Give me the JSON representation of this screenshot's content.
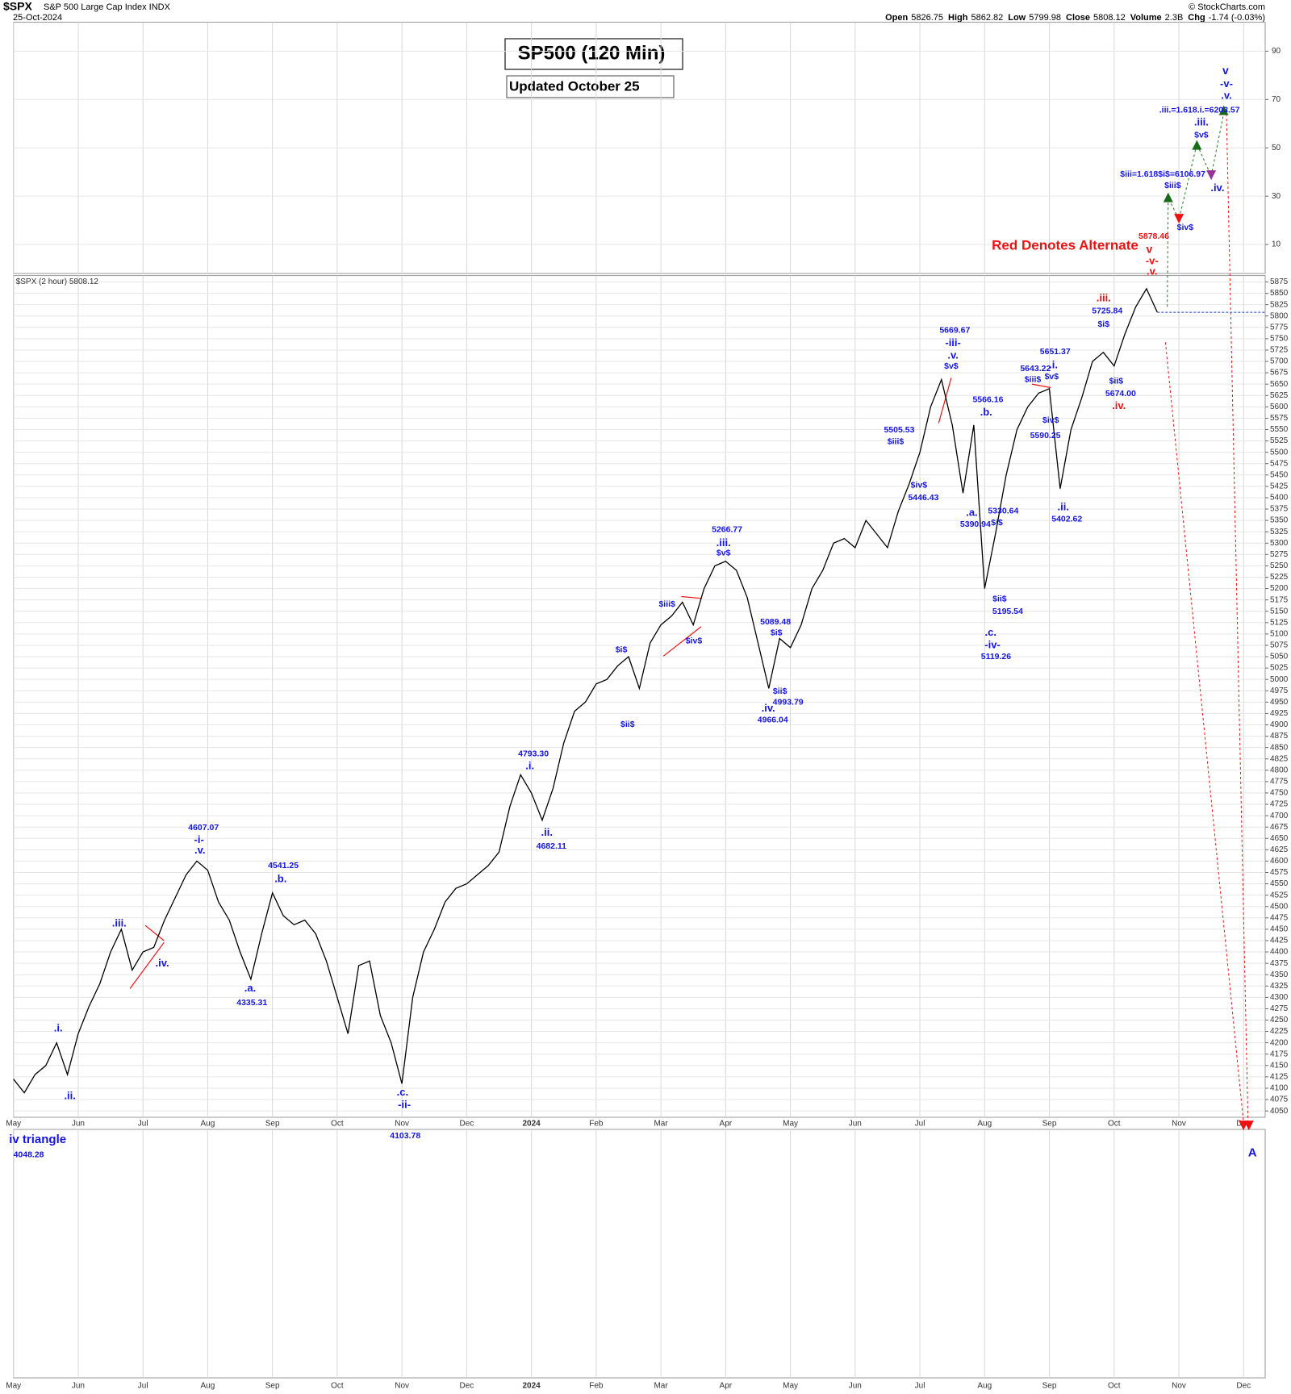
{
  "header": {
    "symbol": "$SPX",
    "name": "S&P 500 Large Cap Index INDX",
    "date": "25-Oct-2024",
    "quote": [
      {
        "label": "Open",
        "value": "5826.75"
      },
      {
        "label": "High",
        "value": "5862.82"
      },
      {
        "label": "Low",
        "value": "5799.98"
      },
      {
        "label": "Close",
        "value": "5808.12"
      },
      {
        "label": "Volume",
        "value": "2.3B"
      },
      {
        "label": "Chg",
        "value": "-1.74 (-0.03%)"
      }
    ],
    "source": "© StockCharts.com"
  },
  "chart_data": {
    "type": "line",
    "title": "SP500 (120 Min)",
    "subtitle": "Updated October 25",
    "series_label": "$SPX (2 hour) 5808.12",
    "last": 5808.12,
    "color": "#000000",
    "last_color": "#1f3fbf",
    "categories": [
      "May",
      null,
      null,
      null,
      null,
      null,
      "Jun",
      null,
      null,
      null,
      null,
      null,
      "Jul",
      null,
      null,
      null,
      null,
      null,
      "Aug",
      null,
      null,
      null,
      null,
      null,
      "Sep",
      null,
      null,
      null,
      null,
      null,
      "Oct",
      null,
      null,
      null,
      null,
      null,
      "Nov",
      null,
      null,
      null,
      null,
      null,
      "Dec",
      null,
      null,
      null,
      null,
      null,
      "2024",
      null,
      null,
      null,
      null,
      null,
      "Feb",
      null,
      null,
      null,
      null,
      null,
      "Mar",
      null,
      null,
      null,
      null,
      null,
      "Apr",
      null,
      null,
      null,
      null,
      null,
      "May",
      null,
      null,
      null,
      null,
      null,
      "Jun",
      null,
      null,
      null,
      null,
      null,
      "Jul",
      null,
      null,
      null,
      null,
      null,
      "Aug",
      null,
      null,
      null,
      null,
      null,
      "Sep",
      null,
      null,
      null,
      null,
      null,
      "Oct",
      null,
      null,
      null,
      null,
      null,
      "Nov",
      null,
      null,
      null,
      null,
      null,
      "Dec",
      null,
      null
    ],
    "values": [
      4120,
      4090,
      4130,
      4150,
      4200,
      4130,
      4220,
      4280,
      4330,
      4400,
      4450,
      4360,
      4400,
      4410,
      4470,
      4520,
      4570,
      4600,
      4580,
      4510,
      4470,
      4400,
      4340,
      4440,
      4530,
      4480,
      4460,
      4470,
      4440,
      4380,
      4300,
      4220,
      4370,
      4380,
      4260,
      4200,
      4110,
      4300,
      4400,
      4450,
      4510,
      4540,
      4550,
      4570,
      4590,
      4620,
      4720,
      4790,
      4750,
      4690,
      4760,
      4860,
      4930,
      4950,
      4990,
      5000,
      5030,
      5050,
      4980,
      5080,
      5120,
      5140,
      5170,
      5120,
      5200,
      5250,
      5260,
      5240,
      5180,
      5080,
      4980,
      5090,
      5070,
      5120,
      5200,
      5240,
      5300,
      5310,
      5290,
      5350,
      5320,
      5290,
      5370,
      5430,
      5500,
      5600,
      5660,
      5560,
      5410,
      5560,
      5200,
      5320,
      5450,
      5550,
      5600,
      5630,
      5640,
      5420,
      5550,
      5620,
      5700,
      5720,
      5690,
      5760,
      5820,
      5860,
      5808.12,
      null,
      null,
      null,
      null,
      null,
      null,
      null,
      null,
      null,
      null
    ],
    "ylim": [
      4036,
      5889
    ],
    "yticks": [
      4050,
      4075,
      4100,
      4125,
      4150,
      4175,
      4200,
      4225,
      4250,
      4275,
      4300,
      4325,
      4350,
      4375,
      4400,
      4425,
      4450,
      4475,
      4500,
      4525,
      4550,
      4575,
      4600,
      4625,
      4650,
      4675,
      4700,
      4725,
      4750,
      4775,
      4800,
      4825,
      4850,
      4875,
      4900,
      4925,
      4950,
      4975,
      5000,
      5025,
      5050,
      5075,
      5100,
      5125,
      5150,
      5175,
      5200,
      5225,
      5250,
      5275,
      5300,
      5325,
      5350,
      5375,
      5400,
      5425,
      5450,
      5475,
      5500,
      5525,
      5550,
      5575,
      5600,
      5625,
      5650,
      5675,
      5700,
      5725,
      5750,
      5775,
      5800,
      5825,
      5850,
      5875
    ],
    "grid": true,
    "upper_panel": {
      "ylim": [
        -2,
        102
      ],
      "yticks": [
        10,
        30,
        50,
        70,
        90
      ]
    },
    "annotations": [
      {
        "text": "Red Denotes Alternate",
        "color": "#ee1111"
      },
      {
        "text": ".i.",
        "color": "#1414e6"
      },
      {
        "text": ".ii.",
        "color": "#1414e6"
      },
      {
        "text": ".iii.",
        "color": "#1414e6"
      },
      {
        "text": ".iv.",
        "color": "#1414e6"
      },
      {
        "text": "4607.07",
        "color": "#1414e6"
      },
      {
        "text": "-i-",
        "color": "#1414e6"
      },
      {
        "text": ".v.",
        "color": "#1414e6"
      },
      {
        "text": "4541.25",
        "color": "#1414e6"
      },
      {
        "text": ".b.",
        "color": "#1414e6"
      },
      {
        "text": ".a.",
        "color": "#1414e6"
      },
      {
        "text": "4335.31",
        "color": "#1414e6"
      },
      {
        "text": ".c.",
        "color": "#1414e6"
      },
      {
        "text": "-ii-",
        "color": "#1414e6"
      },
      {
        "text": "4103.78",
        "color": "#1414e6"
      },
      {
        "text": "iv triangle",
        "color": "#1414e6"
      },
      {
        "text": "4048.28",
        "color": "#1414e6"
      },
      {
        "text": "4793.30",
        "color": "#1414e6"
      },
      {
        "text": ".i.",
        "color": "#1414e6"
      },
      {
        "text": ".ii.",
        "color": "#1414e6"
      },
      {
        "text": "4682.11",
        "color": "#1414e6"
      },
      {
        "text": "$i$",
        "color": "#1414e6"
      },
      {
        "text": "$ii$",
        "color": "#1414e6"
      },
      {
        "text": "$iii$",
        "color": "#1414e6"
      },
      {
        "text": "$iv$",
        "color": "#1414e6"
      },
      {
        "text": "5266.77",
        "color": "#1414e6"
      },
      {
        "text": ".iii.",
        "color": "#1414e6"
      },
      {
        "text": "$v$",
        "color": "#1414e6"
      },
      {
        "text": "5089.48",
        "color": "#1414e6"
      },
      {
        "text": "$i$",
        "color": "#1414e6"
      },
      {
        "text": "$ii$",
        "color": "#1414e6"
      },
      {
        "text": "4993.79",
        "color": "#1414e6"
      },
      {
        "text": ".iv.",
        "color": "#1414e6"
      },
      {
        "text": "4966.04",
        "color": "#1414e6"
      },
      {
        "text": "5505.53",
        "color": "#1414e6"
      },
      {
        "text": "$iii$",
        "color": "#1414e6"
      },
      {
        "text": "$iv$",
        "color": "#1414e6"
      },
      {
        "text": "5446.43",
        "color": "#1414e6"
      },
      {
        "text": "5669.67",
        "color": "#1414e6"
      },
      {
        "text": "-iii-",
        "color": "#1414e6"
      },
      {
        "text": ".v.",
        "color": "#1414e6"
      },
      {
        "text": "$v$",
        "color": "#1414e6"
      },
      {
        "text": "5566.16",
        "color": "#1414e6"
      },
      {
        "text": ".b.",
        "color": "#1414e6"
      },
      {
        "text": ".a.",
        "color": "#1414e6"
      },
      {
        "text": "5390.94",
        "color": "#1414e6"
      },
      {
        "text": "5330.64",
        "color": "#1414e6"
      },
      {
        "text": "$i$",
        "color": "#1414e6"
      },
      {
        "text": "$ii$",
        "color": "#1414e6"
      },
      {
        "text": "5195.54",
        "color": "#1414e6"
      },
      {
        "text": ".c.",
        "color": "#1414e6"
      },
      {
        "text": "-iv-",
        "color": "#1414e6"
      },
      {
        "text": "5119.26",
        "color": "#1414e6"
      },
      {
        "text": "5643.22",
        "color": "#1414e6"
      },
      {
        "text": "$iii$",
        "color": "#1414e6"
      },
      {
        "text": "5651.37",
        "color": "#1414e6"
      },
      {
        "text": ".i.",
        "color": "#1414e6"
      },
      {
        "text": "$v$",
        "color": "#1414e6"
      },
      {
        "text": "$iv$",
        "color": "#1414e6"
      },
      {
        "text": "5590.25",
        "color": "#1414e6"
      },
      {
        "text": ".ii.",
        "color": "#1414e6"
      },
      {
        "text": "5402.62",
        "color": "#1414e6"
      },
      {
        "text": "5725.84",
        "color": "#1414e6"
      },
      {
        "text": "$i$",
        "color": "#1414e6"
      },
      {
        "text": "$ii$",
        "color": "#1414e6"
      },
      {
        "text": "5674.00",
        "color": "#1414e6"
      },
      {
        "text": "$iv$",
        "color": "#1414e6"
      },
      {
        "text": "$iii$",
        "color": "#1414e6"
      },
      {
        "text": "$iii=1.618$i$=6106.97",
        "color": "#1414e6"
      },
      {
        "text": "$v$",
        "color": "#1414e6"
      },
      {
        "text": ".iii.",
        "color": "#1414e6"
      },
      {
        "text": ".iii.=1.618.i.=6203.57",
        "color": "#1414e6"
      },
      {
        "text": ".iv.",
        "color": "#1414e6"
      },
      {
        "text": "v",
        "color": "#1414e6"
      },
      {
        "text": "-v-",
        "color": "#1414e6"
      },
      {
        "text": ".v.",
        "color": "#1414e6"
      },
      {
        "text": "A",
        "color": "#1414e6"
      },
      {
        "text": ".iii.",
        "color": "#ee1111"
      },
      {
        "text": ".iv.",
        "color": "#ee1111"
      },
      {
        "text": "5878.46",
        "color": "#ee1111"
      },
      {
        "text": "v",
        "color": "#ee1111"
      },
      {
        "text": "-v-",
        "color": "#ee1111"
      },
      {
        "text": ".v.",
        "color": "#ee1111"
      }
    ]
  }
}
